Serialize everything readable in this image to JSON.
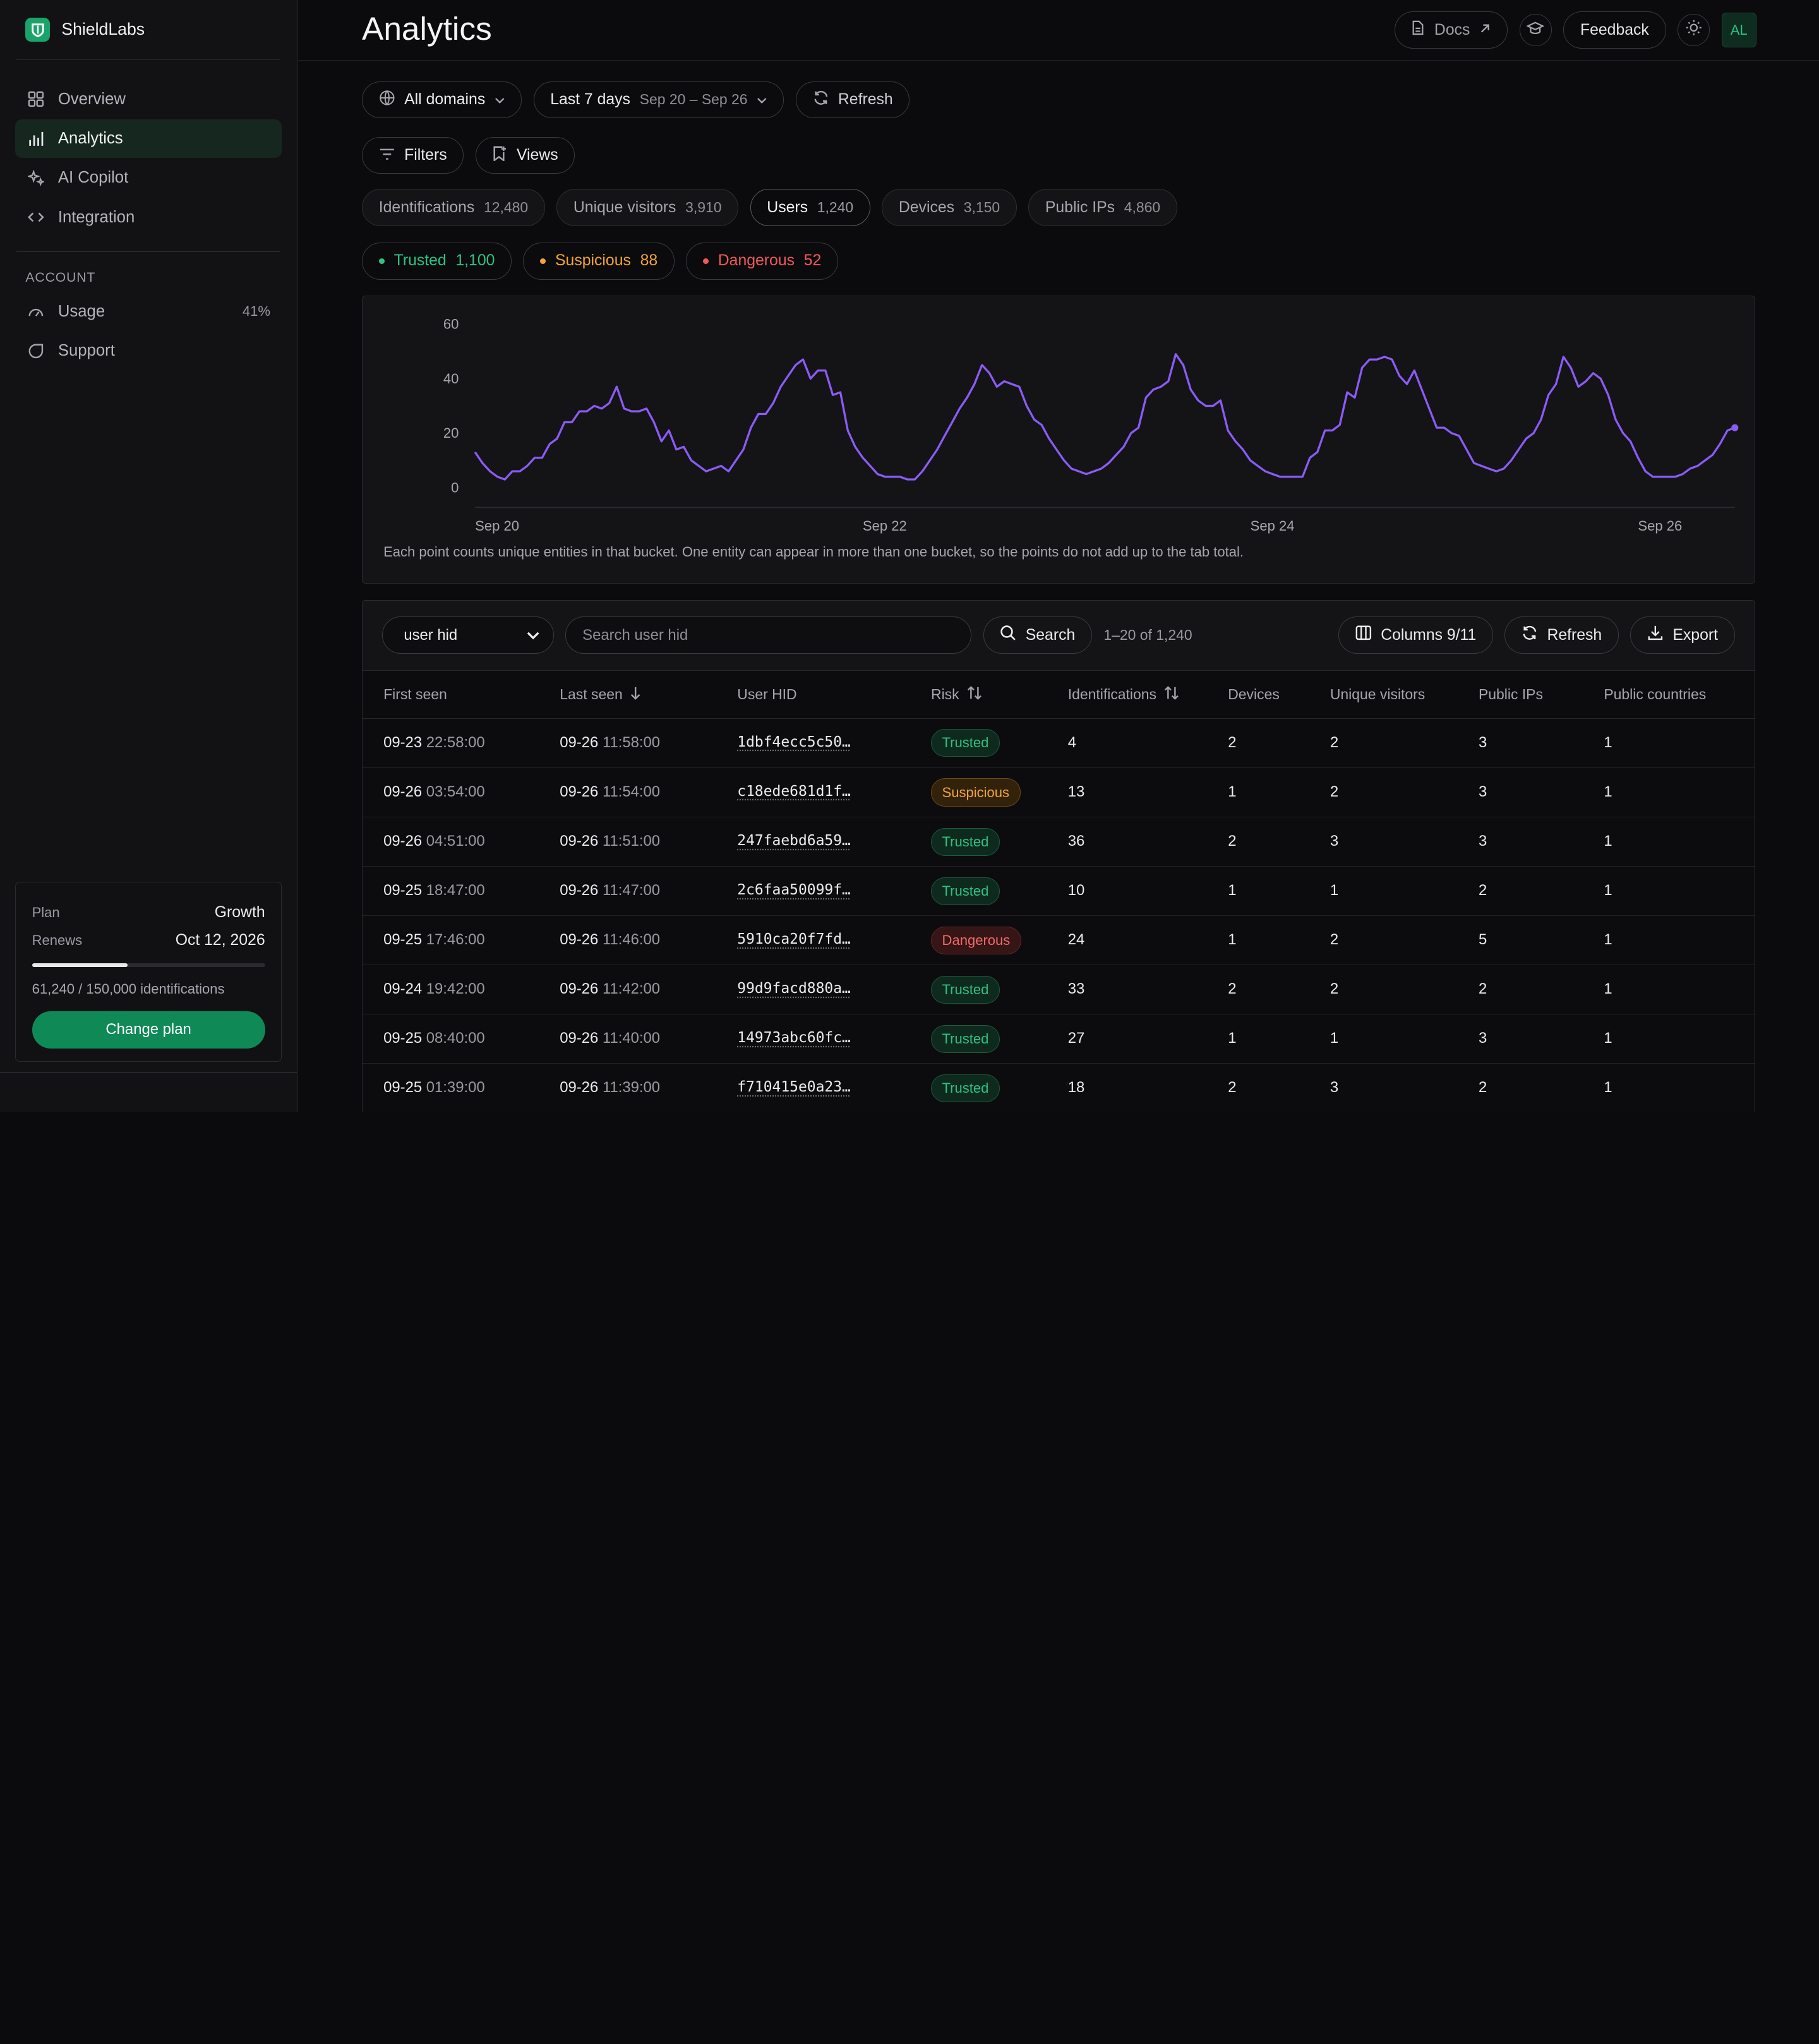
{
  "brand": {
    "name": "ShieldLabs"
  },
  "sidebar": {
    "items": [
      {
        "label": "Overview",
        "icon": "grid-icon"
      },
      {
        "label": "Analytics",
        "icon": "bar-chart-icon",
        "active": true
      },
      {
        "label": "AI Copilot",
        "icon": "sparkle-icon"
      },
      {
        "label": "Integration",
        "icon": "code-icon"
      }
    ],
    "account_label": "ACCOUNT",
    "account_items": [
      {
        "label": "Usage",
        "icon": "gauge-icon",
        "value": "41%"
      },
      {
        "label": "Support",
        "icon": "chat-icon"
      }
    ],
    "plan": {
      "plan_key": "Plan",
      "plan_value": "Growth",
      "renews_key": "Renews",
      "renews_value": "Oct 12, 2026",
      "usage_fraction": 0.41,
      "usage_text": "61,240 / 150,000 identifications",
      "button": "Change plan"
    }
  },
  "header": {
    "title": "Analytics",
    "docs": "Docs",
    "feedback": "Feedback",
    "avatar": "AL"
  },
  "toolbar": {
    "domains": "All domains",
    "range_label": "Last 7 days",
    "range_dates": "Sep 20 – Sep 26",
    "refresh": "Refresh",
    "filters": "Filters",
    "views": "Views"
  },
  "tabs": [
    {
      "label": "Identifications",
      "count": "12,480"
    },
    {
      "label": "Unique visitors",
      "count": "3,910"
    },
    {
      "label": "Users",
      "count": "1,240",
      "active": true
    },
    {
      "label": "Devices",
      "count": "3,150"
    },
    {
      "label": "Public IPs",
      "count": "4,860"
    }
  ],
  "risk_filters": [
    {
      "label": "Trusted",
      "count": "1,100",
      "color": "#2fc283"
    },
    {
      "label": "Suspicious",
      "count": "88",
      "color": "#f1a33a"
    },
    {
      "label": "Dangerous",
      "count": "52",
      "color": "#ef5a5a"
    }
  ],
  "chart_data": {
    "type": "line",
    "title": "",
    "xlabel": "",
    "ylabel": "",
    "ylim": [
      0,
      60
    ],
    "yticks": [
      "0",
      "20",
      "40",
      "60"
    ],
    "xtick_labels": [
      "Sep 20",
      "Sep 22",
      "Sep 24",
      "Sep 26"
    ],
    "color": "#8b5cf6",
    "series": [
      {
        "values": [
          13,
          9,
          6,
          4,
          3,
          6,
          6,
          8,
          11,
          11,
          16,
          18,
          24,
          24,
          28,
          28,
          30,
          29,
          31,
          37,
          29,
          28,
          28,
          29,
          24,
          17,
          21,
          14,
          15,
          10,
          8,
          6,
          7,
          8,
          6,
          10,
          14,
          22,
          27,
          27,
          31,
          37,
          41,
          45,
          47,
          40,
          43,
          43,
          34,
          35,
          21,
          15,
          11,
          8,
          5,
          4,
          4,
          4,
          3,
          3,
          6,
          10,
          14,
          19,
          24,
          29,
          33,
          38,
          45,
          42,
          37,
          39,
          38,
          37,
          30,
          25,
          23,
          18,
          14,
          10,
          7,
          6,
          5,
          6,
          7,
          9,
          12,
          15,
          20,
          22,
          33,
          36,
          37,
          39,
          49,
          45,
          36,
          32,
          30,
          30,
          32,
          21,
          17,
          14,
          10,
          8,
          6,
          5,
          4,
          4,
          4,
          4,
          11,
          13,
          21,
          21,
          23,
          35,
          33,
          44,
          47,
          47,
          48,
          47,
          41,
          38,
          43,
          36,
          29,
          22,
          22,
          20,
          19,
          14,
          9,
          8,
          7,
          6,
          7,
          10,
          14,
          18,
          20,
          25,
          34,
          38,
          48,
          44,
          37,
          39,
          42,
          40,
          34,
          25,
          20,
          17,
          11,
          6,
          4,
          4,
          4,
          4,
          5,
          7,
          8,
          10,
          12,
          16,
          21,
          22
        ]
      }
    ],
    "note": "Each point counts unique entities in that bucket. One entity can appear in more than one bucket, so the points do not add up to the tab total."
  },
  "table": {
    "select_value": "user hid",
    "search_placeholder": "Search user hid",
    "search_button": "Search",
    "range_text": "1–20 of 1,240",
    "columns_button": "Columns 9/11",
    "refresh_button": "Refresh",
    "export_button": "Export",
    "headers": [
      "First seen",
      "Last seen",
      "User HID",
      "Risk",
      "Identifications",
      "Devices",
      "Unique visitors",
      "Public IPs",
      "Public countries"
    ],
    "rows": [
      {
        "first_date": "09-23",
        "first_time": "22:58:00",
        "last_date": "09-26",
        "last_time": "11:58:00",
        "hid": "1dbf4ecc5c50…",
        "risk": "Trusted",
        "ids": "4",
        "devices": "2",
        "visitors": "2",
        "ips": "3",
        "countries": "1"
      },
      {
        "first_date": "09-26",
        "first_time": "03:54:00",
        "last_date": "09-26",
        "last_time": "11:54:00",
        "hid": "c18ede681d1f…",
        "risk": "Suspicious",
        "ids": "13",
        "devices": "1",
        "visitors": "2",
        "ips": "3",
        "countries": "1"
      },
      {
        "first_date": "09-26",
        "first_time": "04:51:00",
        "last_date": "09-26",
        "last_time": "11:51:00",
        "hid": "247faebd6a59…",
        "risk": "Trusted",
        "ids": "36",
        "devices": "2",
        "visitors": "3",
        "ips": "3",
        "countries": "1"
      },
      {
        "first_date": "09-25",
        "first_time": "18:47:00",
        "last_date": "09-26",
        "last_time": "11:47:00",
        "hid": "2c6faa50099f…",
        "risk": "Trusted",
        "ids": "10",
        "devices": "1",
        "visitors": "1",
        "ips": "2",
        "countries": "1"
      },
      {
        "first_date": "09-25",
        "first_time": "17:46:00",
        "last_date": "09-26",
        "last_time": "11:46:00",
        "hid": "5910ca20f7fd…",
        "risk": "Dangerous",
        "ids": "24",
        "devices": "1",
        "visitors": "2",
        "ips": "5",
        "countries": "1"
      },
      {
        "first_date": "09-24",
        "first_time": "19:42:00",
        "last_date": "09-26",
        "last_time": "11:42:00",
        "hid": "99d9facd880a…",
        "risk": "Trusted",
        "ids": "33",
        "devices": "2",
        "visitors": "2",
        "ips": "2",
        "countries": "1"
      },
      {
        "first_date": "09-25",
        "first_time": "08:40:00",
        "last_date": "09-26",
        "last_time": "11:40:00",
        "hid": "14973abc60fc…",
        "risk": "Trusted",
        "ids": "27",
        "devices": "1",
        "visitors": "1",
        "ips": "3",
        "countries": "1"
      },
      {
        "first_date": "09-25",
        "first_time": "01:39:00",
        "last_date": "09-26",
        "last_time": "11:39:00",
        "hid": "f710415e0a23…",
        "risk": "Trusted",
        "ids": "18",
        "devices": "2",
        "visitors": "3",
        "ips": "2",
        "countries": "1"
      }
    ]
  }
}
